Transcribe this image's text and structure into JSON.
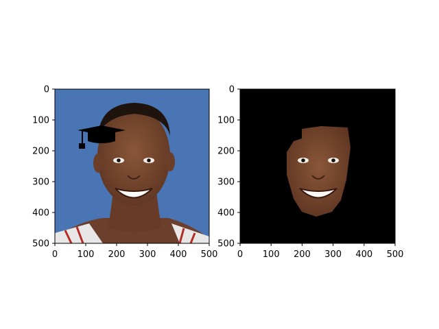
{
  "chart_data": [
    {
      "type": "image",
      "content": "portrait photo with a black graduation cap overlay",
      "x_ticks": [
        0,
        100,
        200,
        300,
        400,
        500
      ],
      "y_ticks": [
        0,
        100,
        200,
        300,
        400,
        500
      ],
      "xlim": [
        0,
        500
      ],
      "ylim": [
        500,
        0
      ],
      "colors": {
        "background": "#4a75b5",
        "skin": "#7a4a33",
        "cap": "#000000"
      }
    },
    {
      "type": "image",
      "content": "face region masked on black background",
      "x_ticks": [
        0,
        100,
        200,
        300,
        400,
        500
      ],
      "y_ticks": [
        0,
        100,
        200,
        300,
        400,
        500
      ],
      "xlim": [
        0,
        500
      ],
      "ylim": [
        500,
        0
      ],
      "colors": {
        "background": "#000000",
        "skin": "#7a4a33"
      }
    }
  ]
}
